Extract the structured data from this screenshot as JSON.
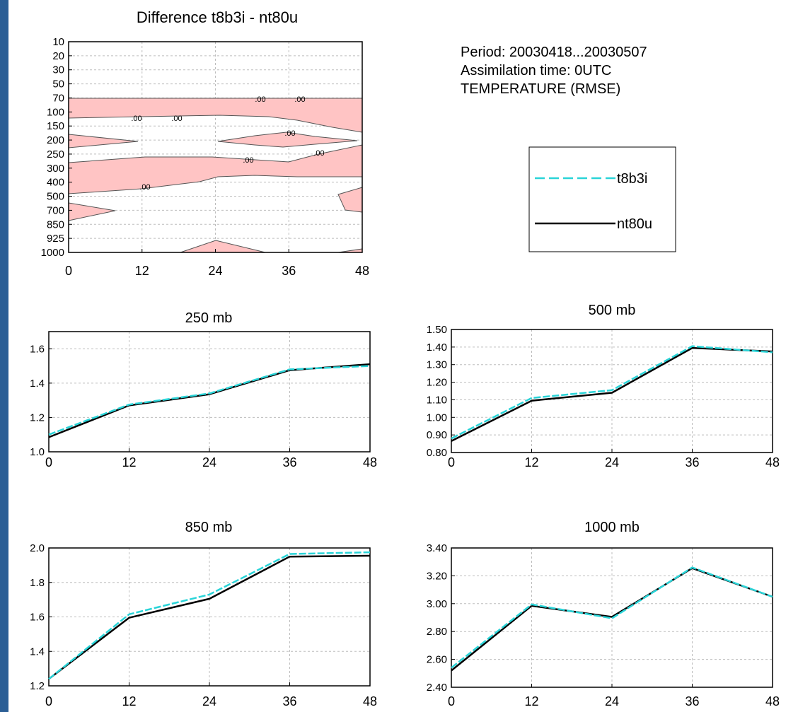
{
  "info": {
    "period": "Period: 20030418...20030507",
    "assimilation": "Assimilation time: 0UTC",
    "variable": "TEMPERATURE  (RMSE)"
  },
  "legend": [
    {
      "name": "t8b3i",
      "color": "#2ad4d8",
      "dash": true
    },
    {
      "name": "nt80u",
      "color": "#000000",
      "dash": false
    }
  ],
  "colors": {
    "background": "#2b5e95",
    "fill": "#ffc4c4",
    "grid": "#bdbdbd"
  },
  "chart_data": [
    {
      "type": "contour",
      "title": "Difference t8b3i - nt80u",
      "x_ticks": [
        "0",
        "12",
        "24",
        "36",
        "48"
      ],
      "xlim": [
        0,
        48
      ],
      "y_ticks": [
        "10",
        "20",
        "30",
        "50",
        "70",
        "100",
        "150",
        "200",
        "250",
        "300",
        "400",
        "500",
        "700",
        "850",
        "925",
        "1000"
      ],
      "contour_labels": [
        ".00",
        ".00",
        ".00",
        ".00",
        ".00",
        ".00",
        ".00",
        ".00"
      ]
    },
    {
      "type": "line",
      "title": "250 mb",
      "x": [
        0,
        12,
        24,
        36,
        48
      ],
      "x_ticks": [
        "0",
        "12",
        "24",
        "36",
        "48"
      ],
      "ylim": [
        1.0,
        1.7
      ],
      "y_ticks": [
        {
          "v": 1.0,
          "label": "1.0"
        },
        {
          "v": 1.2,
          "label": "1.2"
        },
        {
          "v": 1.4,
          "label": "1.4"
        },
        {
          "v": 1.6,
          "label": "1.6"
        }
      ],
      "series": [
        {
          "name": "t8b3i",
          "values": [
            1.1,
            1.275,
            1.34,
            1.48,
            1.5
          ]
        },
        {
          "name": "nt80u",
          "values": [
            1.085,
            1.27,
            1.335,
            1.475,
            1.51
          ]
        }
      ]
    },
    {
      "type": "line",
      "title": "500 mb",
      "x": [
        0,
        12,
        24,
        36,
        48
      ],
      "x_ticks": [
        "0",
        "12",
        "24",
        "36",
        "48"
      ],
      "ylim": [
        0.8,
        1.5
      ],
      "y_ticks": [
        {
          "v": 0.8,
          "label": "0.80"
        },
        {
          "v": 0.9,
          "label": "0.90"
        },
        {
          "v": 1.0,
          "label": "1.00"
        },
        {
          "v": 1.1,
          "label": "1.10"
        },
        {
          "v": 1.2,
          "label": "1.20"
        },
        {
          "v": 1.3,
          "label": "1.30"
        },
        {
          "v": 1.4,
          "label": "1.40"
        },
        {
          "v": 1.5,
          "label": "1.50"
        }
      ],
      "series": [
        {
          "name": "t8b3i",
          "values": [
            0.88,
            1.11,
            1.155,
            1.405,
            1.37
          ]
        },
        {
          "name": "nt80u",
          "values": [
            0.865,
            1.095,
            1.14,
            1.395,
            1.375
          ]
        }
      ]
    },
    {
      "type": "line",
      "title": "850 mb",
      "x": [
        0,
        12,
        24,
        36,
        48
      ],
      "x_ticks": [
        "0",
        "12",
        "24",
        "36",
        "48"
      ],
      "ylim": [
        1.2,
        2.0
      ],
      "y_ticks": [
        {
          "v": 1.2,
          "label": "1.2"
        },
        {
          "v": 1.4,
          "label": "1.4"
        },
        {
          "v": 1.6,
          "label": "1.6"
        },
        {
          "v": 1.8,
          "label": "1.8"
        },
        {
          "v": 2.0,
          "label": "2.0"
        }
      ],
      "series": [
        {
          "name": "t8b3i",
          "values": [
            1.24,
            1.615,
            1.73,
            1.965,
            1.975
          ]
        },
        {
          "name": "nt80u",
          "values": [
            1.24,
            1.595,
            1.705,
            1.95,
            1.955
          ]
        }
      ]
    },
    {
      "type": "line",
      "title": "1000 mb",
      "x": [
        0,
        12,
        24,
        36,
        48
      ],
      "x_ticks": [
        "0",
        "12",
        "24",
        "36",
        "48"
      ],
      "ylim": [
        2.4,
        3.4
      ],
      "y_ticks": [
        {
          "v": 2.4,
          "label": "2.40"
        },
        {
          "v": 2.6,
          "label": "2.60"
        },
        {
          "v": 2.8,
          "label": "2.80"
        },
        {
          "v": 3.0,
          "label": "3.00"
        },
        {
          "v": 3.2,
          "label": "3.20"
        },
        {
          "v": 3.4,
          "label": "3.40"
        }
      ],
      "series": [
        {
          "name": "t8b3i",
          "values": [
            2.54,
            2.995,
            2.895,
            3.26,
            3.05
          ]
        },
        {
          "name": "nt80u",
          "values": [
            2.52,
            2.985,
            2.905,
            3.255,
            3.05
          ]
        }
      ]
    }
  ]
}
